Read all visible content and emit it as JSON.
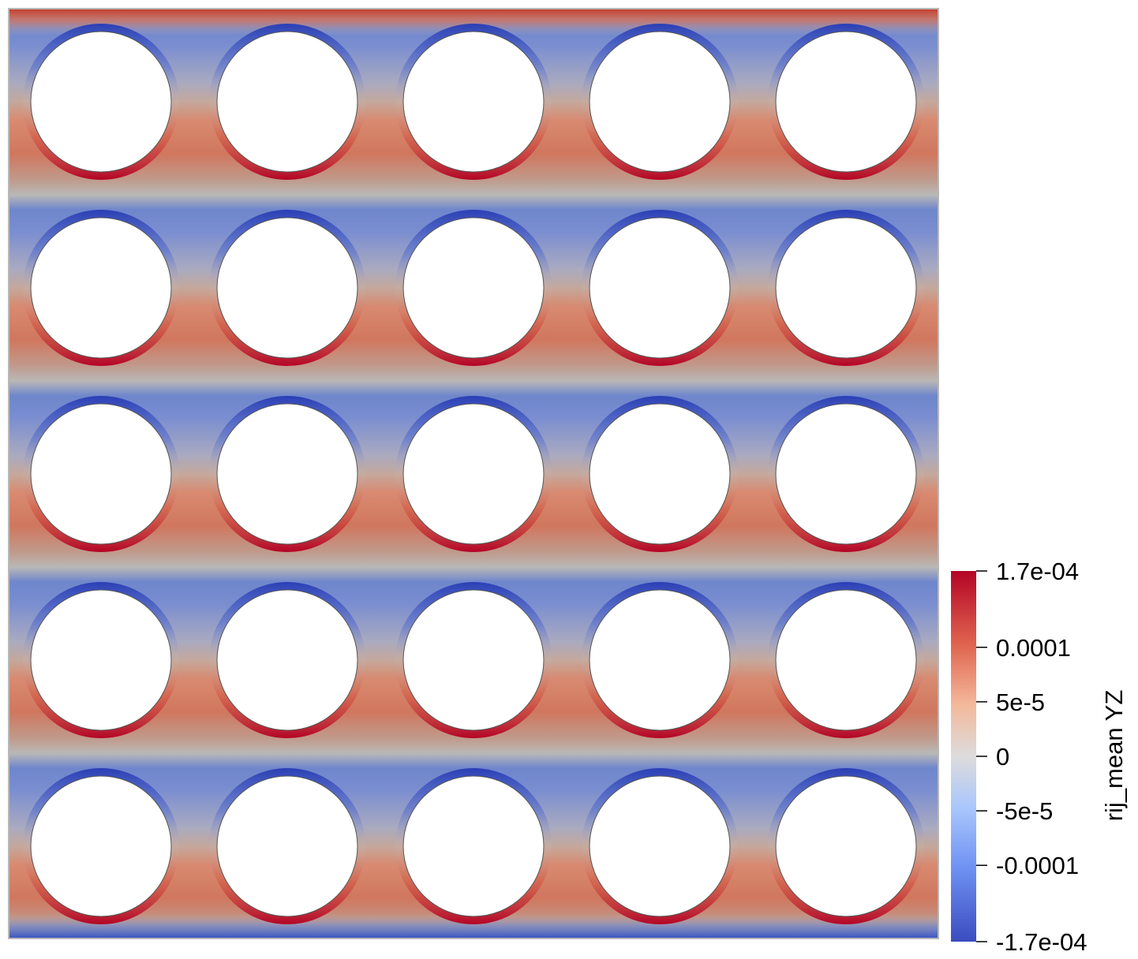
{
  "colorbar": {
    "title": "rij_mean YZ",
    "colormap": "Cool to Warm",
    "colors": {
      "min": "#3b4cc0",
      "neutral": "#dddcdc",
      "max": "#b40426",
      "field_neutral": "#b9b8b6",
      "hole": "#ffffff"
    },
    "range": [
      -0.00017,
      0.00017
    ],
    "ticks": [
      {
        "value": 0.00017,
        "label": "1.7e-04"
      },
      {
        "value": 0.0001,
        "label": "0.0001"
      },
      {
        "value": 5e-05,
        "label": "5e-5"
      },
      {
        "value": 0,
        "label": "0"
      },
      {
        "value": -5e-05,
        "label": "-5e-5"
      },
      {
        "value": -0.0001,
        "label": "-0.0001"
      },
      {
        "value": -0.00017,
        "label": "-1.7e-04"
      }
    ]
  },
  "field": {
    "rows": 5,
    "cols": 5,
    "description_of_pattern": ""
  }
}
